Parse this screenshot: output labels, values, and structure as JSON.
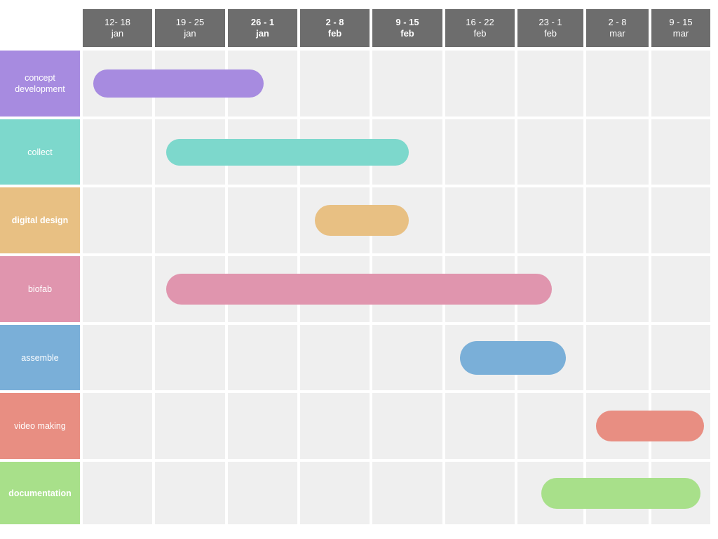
{
  "chart_data": {
    "type": "gantt",
    "periods": [
      {
        "line1": "12- 18",
        "line2": "jan",
        "bold": false
      },
      {
        "line1": "19 - 25",
        "line2": "jan",
        "bold": false
      },
      {
        "line1": "26 - 1",
        "line2": "jan",
        "bold": true
      },
      {
        "line1": "2 - 8",
        "line2": "feb",
        "bold": true
      },
      {
        "line1": "9 - 15",
        "line2": "feb",
        "bold": true
      },
      {
        "line1": "16 - 22",
        "line2": "feb",
        "bold": false
      },
      {
        "line1": "23 - 1",
        "line2": "feb",
        "bold": false
      },
      {
        "line1": "2 - 8",
        "line2": "mar",
        "bold": false
      },
      {
        "line1": "9 - 15",
        "line2": "mar",
        "bold": false
      }
    ],
    "tasks": [
      {
        "label": "concept\ndevelopment",
        "bold": false,
        "color": "#a78be0",
        "start": 0.15,
        "end": 2.5
      },
      {
        "label": "collect",
        "bold": false,
        "color": "#7dd8cc",
        "start": 1.15,
        "end": 4.5
      },
      {
        "label": "digital design",
        "bold": true,
        "color": "#e8c083",
        "start": 3.2,
        "end": 4.5
      },
      {
        "label": "biofab",
        "bold": false,
        "color": "#e095ae",
        "start": 1.15,
        "end": 6.5
      },
      {
        "label": "assemble",
        "bold": false,
        "color": "#7aafd8",
        "start": 5.2,
        "end": 6.7
      },
      {
        "label": "video making",
        "bold": false,
        "color": "#e88e82",
        "start": 7.15,
        "end": 8.85
      },
      {
        "label": "documentation",
        "bold": true,
        "color": "#a8e08a",
        "start": 6.35,
        "end": 8.8
      }
    ]
  }
}
